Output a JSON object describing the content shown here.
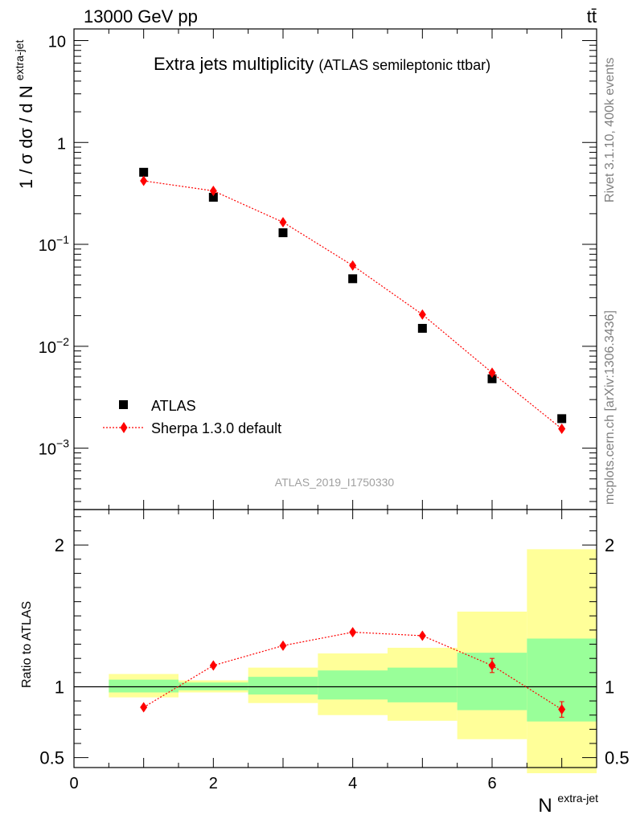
{
  "header": {
    "beam": "13000 GeV pp",
    "process": "tt̄"
  },
  "sidebar": {
    "version": "Rivet 3.1.10,  400k events",
    "source": "mcplots.cern.ch [arXiv:1306.3436]"
  },
  "chart_data": [
    {
      "type": "scatter",
      "title": "Extra jets multiplicity",
      "subtitle": "(ATLAS semileptonic ttbar)",
      "ylabel_main": "1 / σ dσ / d N",
      "ylabel_sup": "extra-jet",
      "yscale": "log",
      "ylim": [
        0.00025,
        13
      ],
      "xlim": [
        0,
        7.5
      ],
      "y_ticks": [
        0.001,
        0.01,
        0.1,
        1,
        10
      ],
      "y_tick_labels": [
        {
          "base": "10",
          "exp": "−3"
        },
        {
          "base": "10",
          "exp": "−2"
        },
        {
          "base": "10",
          "exp": "−1"
        },
        {
          "base": "1",
          "exp": ""
        },
        {
          "base": "10",
          "exp": ""
        }
      ],
      "analysis_id": "ATLAS_2019_I1750330",
      "legend_position": "bottom-left",
      "series": [
        {
          "name": "ATLAS",
          "marker": "square",
          "color": "#000000",
          "x": [
            1,
            2,
            3,
            4,
            5,
            6,
            7
          ],
          "y": [
            0.51,
            0.29,
            0.13,
            0.046,
            0.015,
            0.0048,
            0.00195
          ]
        },
        {
          "name": "Sherpa 1.3.0 default",
          "marker": "diamond",
          "color": "#ff0000",
          "line": "dotted",
          "x": [
            1,
            2,
            3,
            4,
            5,
            6,
            7
          ],
          "y": [
            0.42,
            0.335,
            0.165,
            0.062,
            0.0205,
            0.0055,
            0.00155
          ]
        }
      ]
    },
    {
      "type": "scatter",
      "ylabel": "Ratio to ATLAS",
      "xlabel_main": "N",
      "xlabel_sup": "extra-jet",
      "ylim": [
        0.43,
        2.25
      ],
      "xlim": [
        0,
        7.5
      ],
      "x_ticks": [
        0,
        2,
        4,
        6
      ],
      "x_tick_labels": [
        "0",
        "2",
        "4",
        "6"
      ],
      "y_ticks": [
        0.5,
        1,
        2
      ],
      "y_tick_labels": [
        "0.5",
        "1",
        "2"
      ],
      "reference_line": 1,
      "band_colors": {
        "inner": "#99ff99",
        "outer": "#ffff99"
      },
      "bands": [
        {
          "x0": 0.5,
          "x1": 1.5,
          "inner": [
            0.96,
            1.05
          ],
          "outer": [
            0.925,
            1.09
          ]
        },
        {
          "x0": 1.5,
          "x1": 2.5,
          "inner": [
            0.975,
            1.03
          ],
          "outer": [
            0.96,
            1.045
          ]
        },
        {
          "x0": 2.5,
          "x1": 3.5,
          "inner": [
            0.945,
            1.07
          ],
          "outer": [
            0.885,
            1.135
          ]
        },
        {
          "x0": 3.5,
          "x1": 4.5,
          "inner": [
            0.91,
            1.115
          ],
          "outer": [
            0.8,
            1.235
          ]
        },
        {
          "x0": 4.5,
          "x1": 5.5,
          "inner": [
            0.89,
            1.135
          ],
          "outer": [
            0.76,
            1.275
          ]
        },
        {
          "x0": 5.5,
          "x1": 6.5,
          "inner": [
            0.835,
            1.24
          ],
          "outer": [
            0.63,
            1.53
          ]
        },
        {
          "x0": 6.5,
          "x1": 7.5,
          "inner": [
            0.755,
            1.34
          ],
          "outer": [
            0.39,
            1.97
          ]
        }
      ],
      "series": [
        {
          "name": "Sherpa 1.3.0 default",
          "marker": "diamond",
          "color": "#ff0000",
          "line": "dotted",
          "x": [
            1,
            2,
            3,
            4,
            5,
            6,
            7
          ],
          "y": [
            0.855,
            1.15,
            1.29,
            1.385,
            1.36,
            1.15,
            0.84
          ],
          "yerr": [
            0,
            0,
            0,
            0,
            0,
            0.05,
            0.055
          ]
        }
      ]
    }
  ]
}
